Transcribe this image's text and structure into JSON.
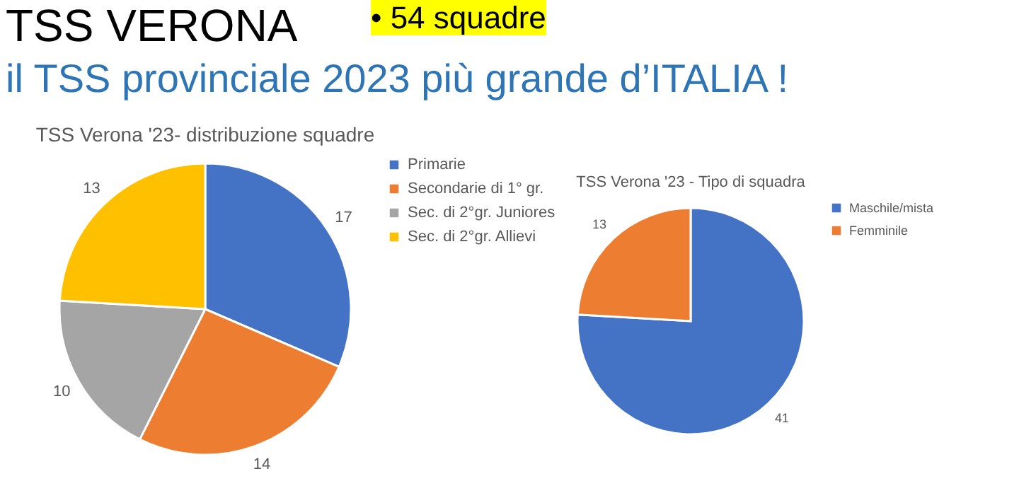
{
  "chart_data": [
    {
      "type": "other",
      "title": "TSS VERONA",
      "annotations": [
        "• 54 squadre",
        "il TSS provinciale 2023 più grande d’ITALIA !"
      ]
    },
    {
      "type": "pie",
      "title": "TSS Verona '23- distribuzione squadre",
      "categories": [
        "Primarie",
        "Secondarie di 1° gr.",
        "Sec. di 2°gr. Juniores",
        "Sec. di 2°gr. Allievi"
      ],
      "values": [
        17,
        14,
        10,
        13
      ],
      "colors": [
        "#4472c4",
        "#ed7d31",
        "#a5a5a5",
        "#ffc000"
      ],
      "data_labels": true,
      "legend": "right"
    },
    {
      "type": "pie",
      "title": "TSS Verona '23 - Tipo di squadra",
      "categories": [
        "Maschile/mista",
        "Femminile"
      ],
      "values": [
        41,
        13
      ],
      "colors": [
        "#4472c4",
        "#ed7d31"
      ],
      "data_labels": true,
      "legend": "right"
    }
  ]
}
